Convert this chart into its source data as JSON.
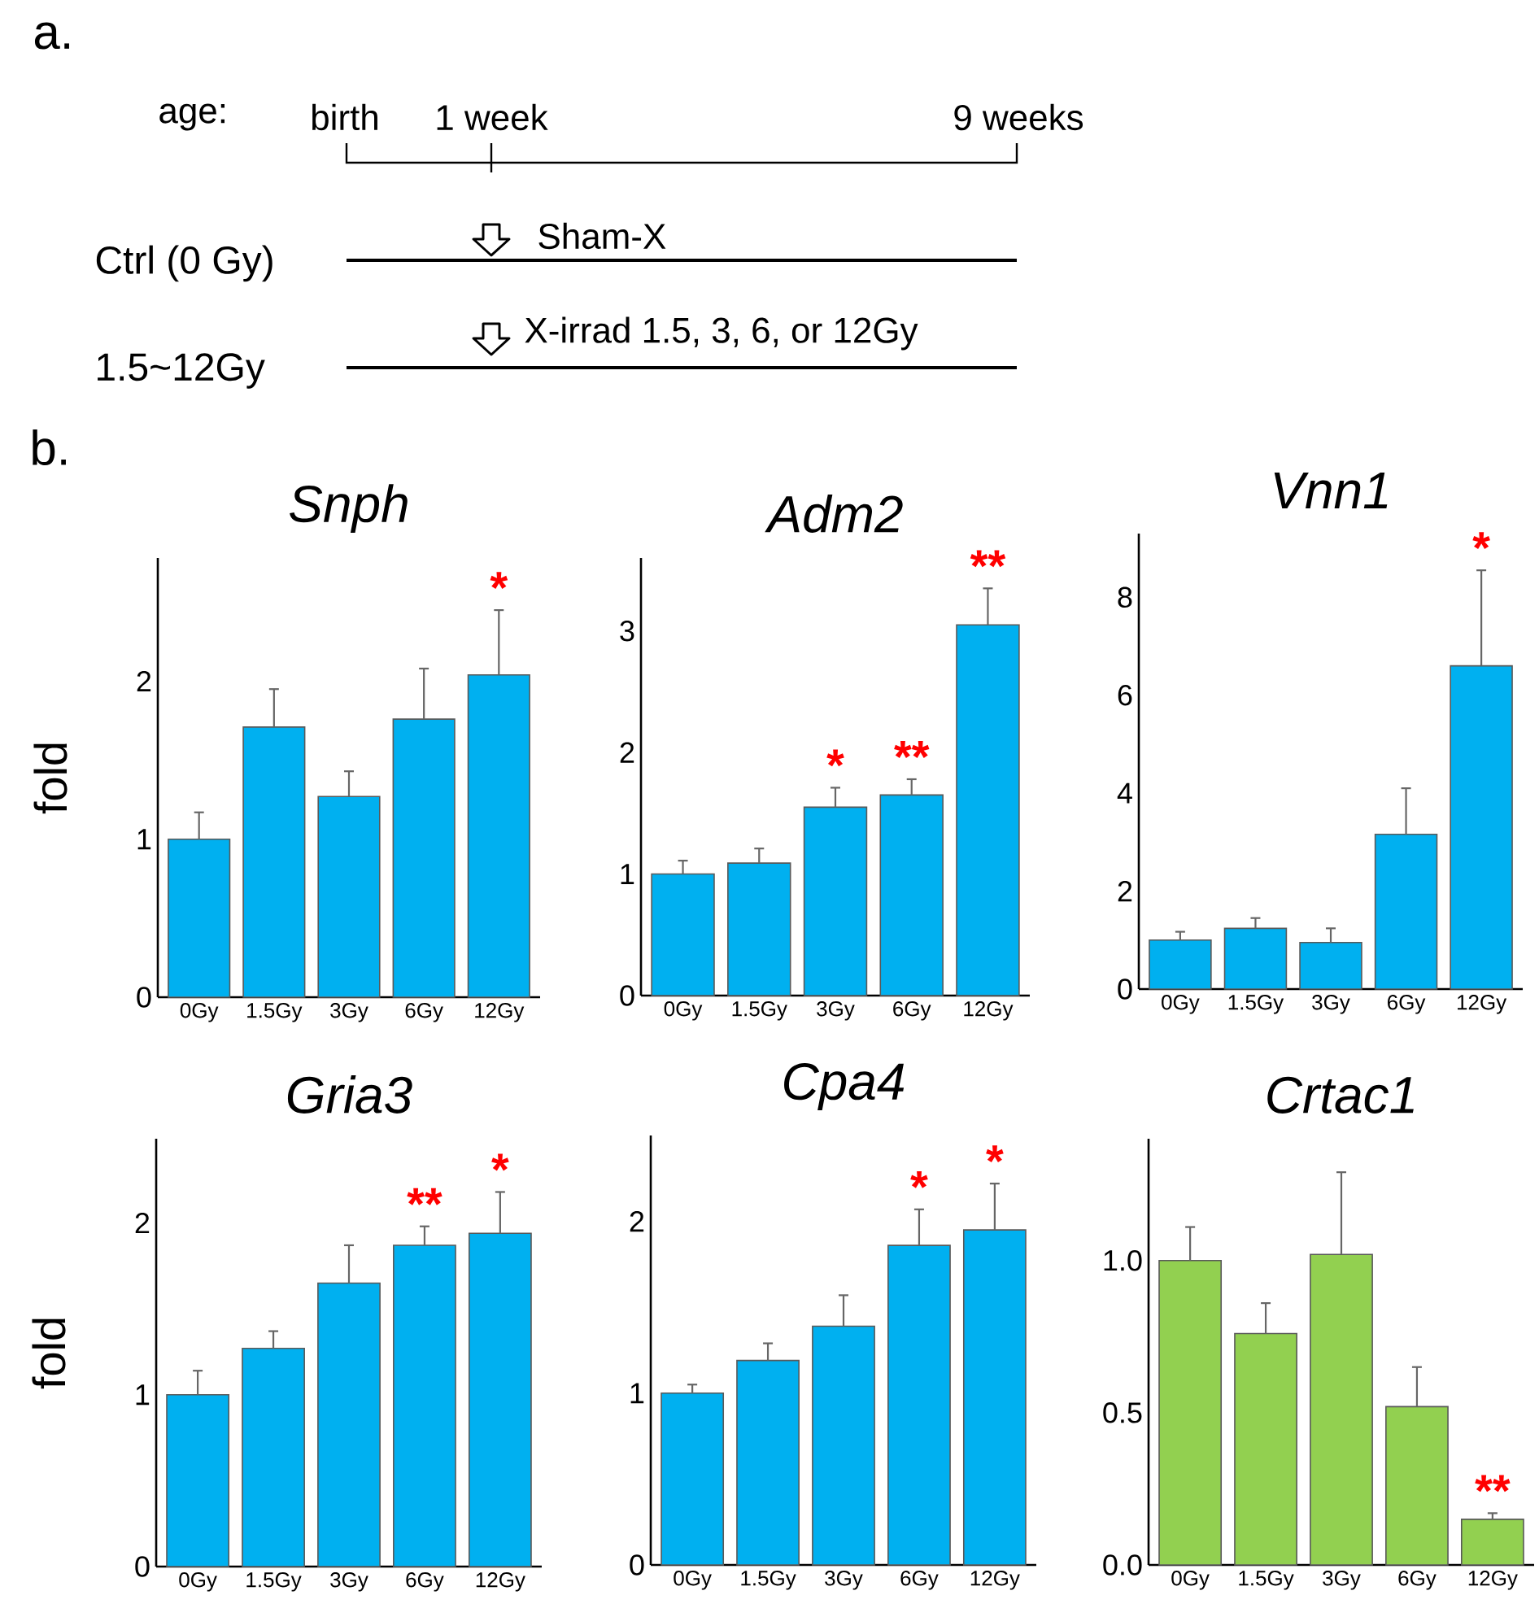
{
  "chart_data": [
    {
      "type": "other",
      "annotations": [
        "a.",
        "age:",
        "birth",
        "1 week",
        "9 weeks",
        "Ctrl (0 Gy)",
        "Sham-X",
        "1.5~12Gy",
        "X-irrad 1.5, 3, 6, or 12Gy"
      ]
    },
    {
      "type": "bar",
      "title": "Snph",
      "ylabel": "fold",
      "categories": [
        "0Gy",
        "1.5Gy",
        "3Gy",
        "6Gy",
        "12Gy"
      ],
      "values": [
        1.0,
        1.71,
        1.27,
        1.76,
        2.04
      ],
      "errors": [
        0.17,
        0.24,
        0.16,
        0.32,
        0.41
      ],
      "color": "#00b0f0",
      "ylim": [
        0,
        2.78
      ],
      "yticks": [
        0,
        1,
        2
      ],
      "annotations": [
        "b.",
        {
          "text": "*",
          "x": "12Gy",
          "y": 2.04
        }
      ]
    },
    {
      "type": "bar",
      "title": "Adm2",
      "categories": [
        "0Gy",
        "1.5Gy",
        "3Gy",
        "6Gy",
        "12Gy"
      ],
      "values": [
        1.0,
        1.09,
        1.55,
        1.65,
        3.05
      ],
      "errors": [
        0.11,
        0.12,
        0.16,
        0.13,
        0.3
      ],
      "color": "#00b0f0",
      "ylim": [
        0,
        3.6
      ],
      "yticks": [
        0,
        1,
        2,
        3
      ],
      "annotations": [
        {
          "text": "*",
          "x": "3Gy",
          "y": 1.55
        },
        {
          "text": "**",
          "x": "6Gy",
          "y": 1.65
        },
        {
          "text": "**",
          "x": "12Gy",
          "y": 3.05
        }
      ]
    },
    {
      "type": "bar",
      "title": "Vnn1",
      "categories": [
        "0Gy",
        "1.5Gy",
        "3Gy",
        "6Gy",
        "12Gy"
      ],
      "values": [
        1.0,
        1.24,
        0.95,
        3.16,
        6.6
      ],
      "errors": [
        0.17,
        0.21,
        0.29,
        0.94,
        1.95
      ],
      "color": "#00b0f0",
      "ylim": [
        0,
        9.3
      ],
      "yticks": [
        0,
        2,
        4,
        6,
        8
      ],
      "annotations": [
        {
          "text": "*",
          "x": "12Gy",
          "y": 6.6
        }
      ]
    },
    {
      "type": "bar",
      "title": "Gria3",
      "ylabel": "fold",
      "categories": [
        "0Gy",
        "1.5Gy",
        "3Gy",
        "6Gy",
        "12Gy"
      ],
      "values": [
        1.0,
        1.27,
        1.65,
        1.87,
        1.94
      ],
      "errors": [
        0.14,
        0.1,
        0.22,
        0.11,
        0.24
      ],
      "color": "#00b0f0",
      "ylim": [
        0,
        2.49
      ],
      "yticks": [
        0,
        1,
        2
      ],
      "annotations": [
        {
          "text": "**",
          "x": "6Gy",
          "y": 1.87
        },
        {
          "text": "*",
          "x": "12Gy",
          "y": 1.94
        }
      ]
    },
    {
      "type": "bar",
      "title": "Cpa4",
      "categories": [
        "0Gy",
        "1.5Gy",
        "3Gy",
        "6Gy",
        "12Gy"
      ],
      "values": [
        1.0,
        1.19,
        1.39,
        1.86,
        1.95
      ],
      "errors": [
        0.05,
        0.1,
        0.18,
        0.21,
        0.27
      ],
      "color": "#00b0f0",
      "ylim": [
        0,
        2.5
      ],
      "yticks": [
        0,
        1,
        2
      ],
      "annotations": [
        {
          "text": "*",
          "x": "6Gy",
          "y": 1.86
        },
        {
          "text": "*",
          "x": "12Gy",
          "y": 1.95
        }
      ]
    },
    {
      "type": "bar",
      "title": "Crtac1",
      "categories": [
        "0Gy",
        "1.5Gy",
        "3Gy",
        "6Gy",
        "12Gy"
      ],
      "values": [
        1.0,
        0.76,
        1.02,
        0.52,
        0.15
      ],
      "errors": [
        0.11,
        0.1,
        0.27,
        0.13,
        0.02
      ],
      "color": "#92d050",
      "ylim": [
        0,
        1.4
      ],
      "yticks": [
        {
          "value": 0,
          "label": "0.0"
        },
        {
          "value": 0.5,
          "label": "0.5"
        },
        {
          "value": 1,
          "label": "1.0"
        }
      ],
      "annotations": [
        {
          "text": "**",
          "x": "12Gy",
          "y": 0.15
        }
      ]
    }
  ]
}
